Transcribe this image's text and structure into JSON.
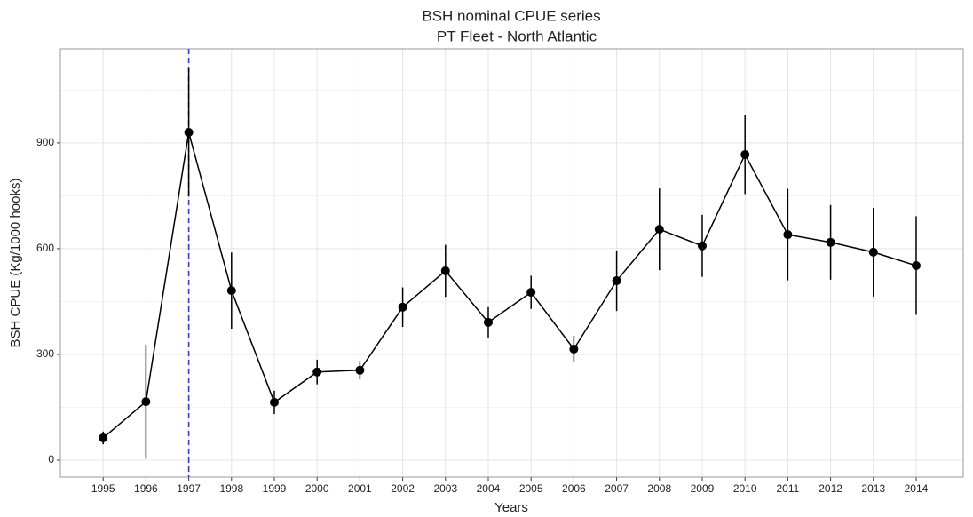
{
  "chart_data": {
    "type": "line",
    "title": "BSH nominal CPUE series",
    "subtitle": "PT Fleet - North Atlantic",
    "x_label": "Years",
    "y_label": "BSH CPUE (Kg/1000 hooks)",
    "x": [
      1995,
      1996,
      1997,
      1998,
      1999,
      2000,
      2001,
      2002,
      2003,
      2004,
      2005,
      2006,
      2007,
      2008,
      2009,
      2010,
      2011,
      2012,
      2013,
      2014
    ],
    "series": [
      {
        "color": "#000000",
        "values": [
          63,
          166,
          930,
          481,
          164,
          250,
          255,
          434,
          537,
          391,
          476,
          315,
          509,
          655,
          608,
          867,
          640,
          618,
          590,
          552
        ],
        "errors": [
          18,
          162,
          182,
          108,
          33,
          35,
          26,
          56,
          74,
          43,
          47,
          38,
          86,
          116,
          88,
          112,
          130,
          106,
          126,
          140
        ]
      }
    ],
    "xlim": [
      1994,
      2015.1
    ],
    "ylim": [
      -48,
      1167
    ],
    "xticks": [
      1995,
      1996,
      1997,
      1998,
      1999,
      2000,
      2001,
      2002,
      2003,
      2004,
      2005,
      2006,
      2007,
      2008,
      2009,
      2010,
      2011,
      2012,
      2013,
      2014
    ],
    "yticks": [
      0,
      300,
      600,
      900
    ],
    "yminor": [
      150,
      450,
      750,
      1050
    ],
    "grid": true,
    "reference_line": {
      "x": 1997,
      "color": "#3333ff"
    }
  }
}
